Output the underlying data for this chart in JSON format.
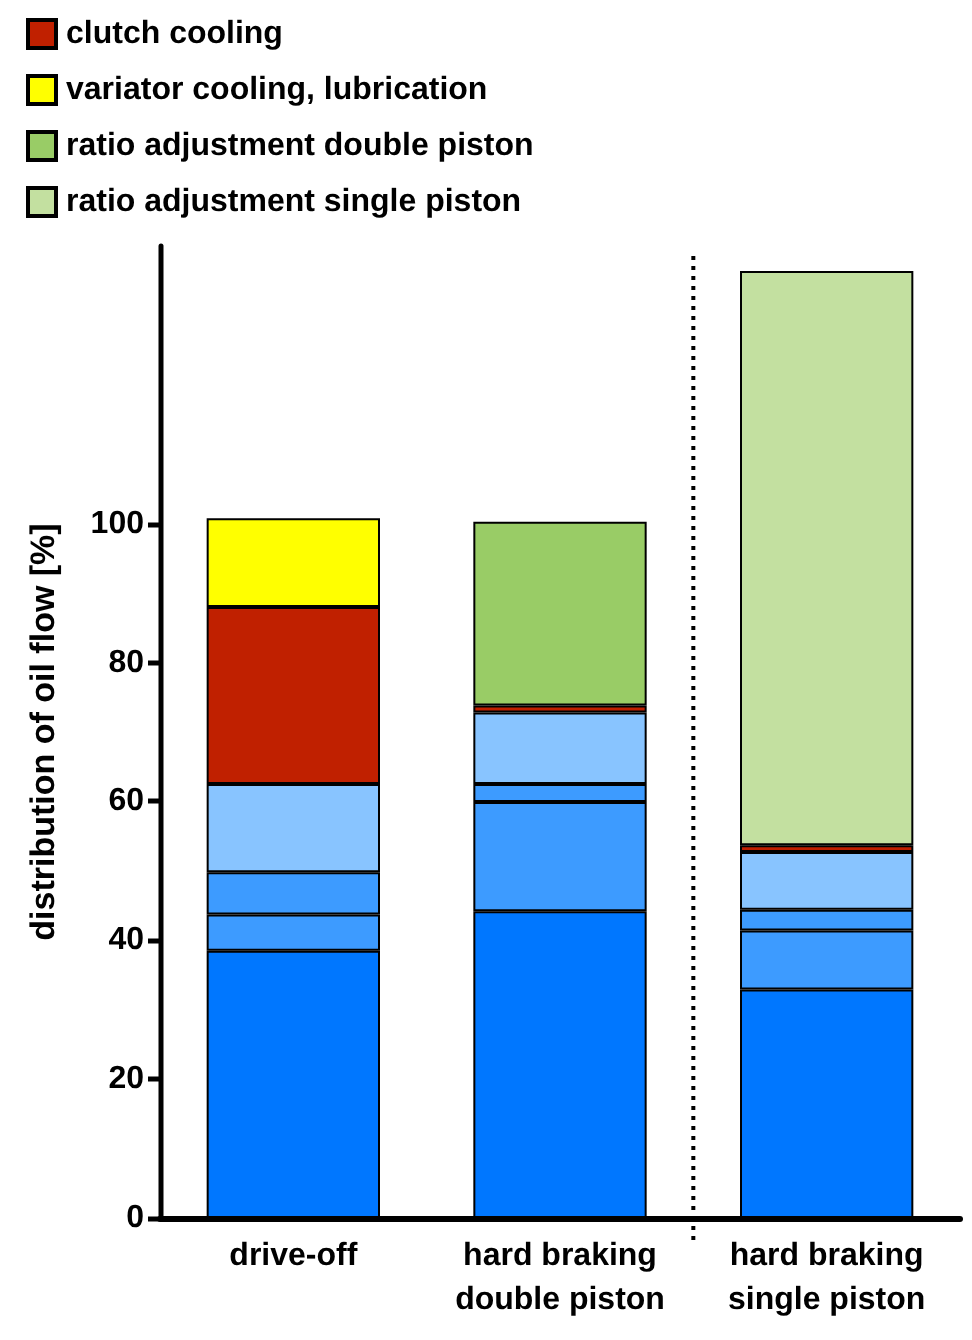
{
  "chart_data": {
    "type": "bar",
    "stacked": true,
    "ylabel": "distribution of oil flow [%]",
    "categories": [
      "drive-off",
      "hard braking\ndouble piston",
      "hard braking\nsingle piston"
    ],
    "series": [
      {
        "color": "#0077ff",
        "values": [
          38.5,
          44.2,
          32.9
        ]
      },
      {
        "color": "#3d9bff",
        "values": [
          5.2,
          15.7,
          8.5
        ]
      },
      {
        "color": "#3d9bff",
        "values": [
          6.1,
          2.6,
          3.0
        ]
      },
      {
        "color": "#88c4ff",
        "values": [
          12.7,
          10.3,
          8.3
        ]
      },
      {
        "name": "clutch cooling",
        "color": "#c02000",
        "values": [
          25.5,
          1.0,
          1.0
        ]
      },
      {
        "name": "variator cooling, lubrication",
        "color": "#ffff00",
        "values": [
          12.8,
          null,
          null
        ]
      },
      {
        "name": "ratio adjustment double piston",
        "color": "#99cc66",
        "values": [
          null,
          26.5,
          null
        ]
      },
      {
        "name": "ratio adjustment single piston",
        "color": "#c3e0a0",
        "values": [
          null,
          null,
          82.7
        ]
      }
    ],
    "ylim": [
      0,
      140
    ],
    "yticks": [
      0,
      20,
      40,
      60,
      80,
      100
    ],
    "grid": false,
    "legend": "top left"
  }
}
